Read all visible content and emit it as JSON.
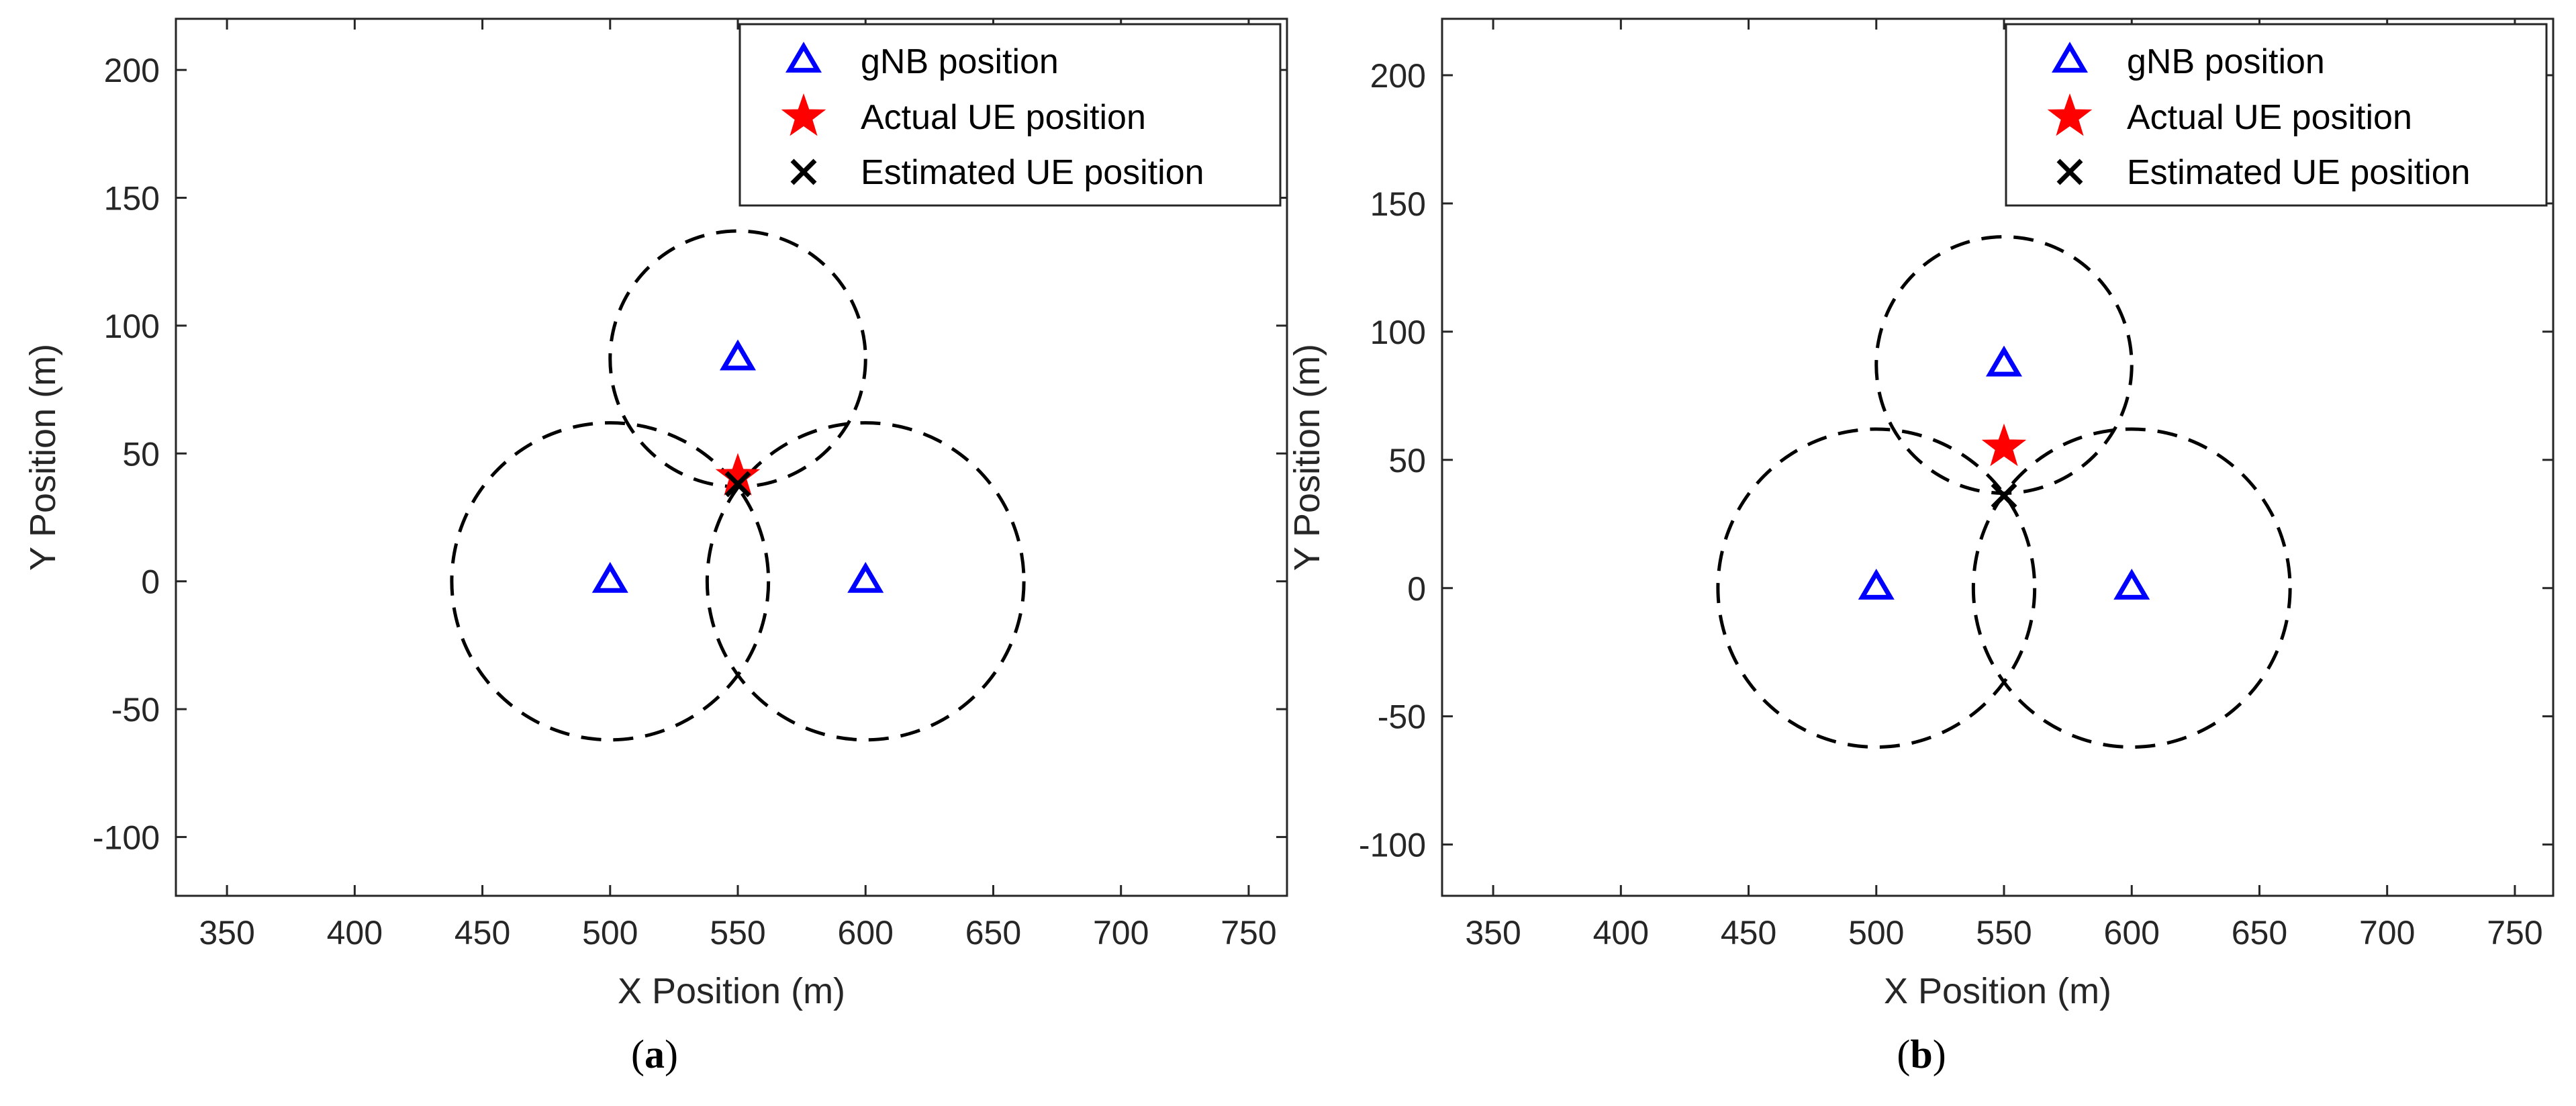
{
  "colors": {
    "gnb": "#0000ff",
    "actual": "#ff0000",
    "estimated": "#000000",
    "circle": "#000000",
    "axis": "#262626"
  },
  "chart_data": [
    {
      "type": "scatter",
      "panel": "a",
      "caption": {
        "open": "(",
        "letter": "a",
        "close": ")"
      },
      "xlabel": "X Position (m)",
      "ylabel": "Y Position (m)",
      "xlim": [
        330,
        765
      ],
      "ylim": [
        -123,
        220
      ],
      "xticks": [
        350,
        400,
        450,
        500,
        550,
        600,
        650,
        700,
        750
      ],
      "yticks": [
        -100,
        -50,
        0,
        50,
        100,
        150,
        200
      ],
      "grid": false,
      "legend_position": "top-right",
      "legend": [
        "gNB position",
        "Actual UE position",
        "Estimated UE position"
      ],
      "gnb": [
        {
          "x": 500,
          "y": 0
        },
        {
          "x": 600,
          "y": 0
        },
        {
          "x": 550,
          "y": 87
        }
      ],
      "range_circles": [
        {
          "cx": 500,
          "cy": 0,
          "r": 62
        },
        {
          "cx": 600,
          "cy": 0,
          "r": 62
        },
        {
          "cx": 550,
          "cy": 87,
          "r": 50
        }
      ],
      "actual_ue": {
        "x": 550,
        "y": 41
      },
      "estimated_ue": {
        "x": 550,
        "y": 38
      }
    },
    {
      "type": "scatter",
      "panel": "b",
      "caption": {
        "open": "(",
        "letter": "b",
        "close": ")"
      },
      "xlabel": "X Position (m)",
      "ylabel": "Y Position (m)",
      "xlim": [
        330,
        765
      ],
      "ylim": [
        -120,
        222
      ],
      "xticks": [
        350,
        400,
        450,
        500,
        550,
        600,
        650,
        700,
        750
      ],
      "yticks": [
        -100,
        -50,
        0,
        50,
        100,
        150,
        200
      ],
      "grid": false,
      "legend_position": "top-right",
      "legend": [
        "gNB position",
        "Actual UE position",
        "Estimated UE position"
      ],
      "gnb": [
        {
          "x": 500,
          "y": 0
        },
        {
          "x": 600,
          "y": 0
        },
        {
          "x": 550,
          "y": 87
        }
      ],
      "range_circles": [
        {
          "cx": 500,
          "cy": 0,
          "r": 62
        },
        {
          "cx": 600,
          "cy": 0,
          "r": 62
        },
        {
          "cx": 550,
          "cy": 87,
          "r": 50
        }
      ],
      "actual_ue": {
        "x": 550,
        "y": 55
      },
      "estimated_ue": {
        "x": 550,
        "y": 36
      }
    }
  ]
}
